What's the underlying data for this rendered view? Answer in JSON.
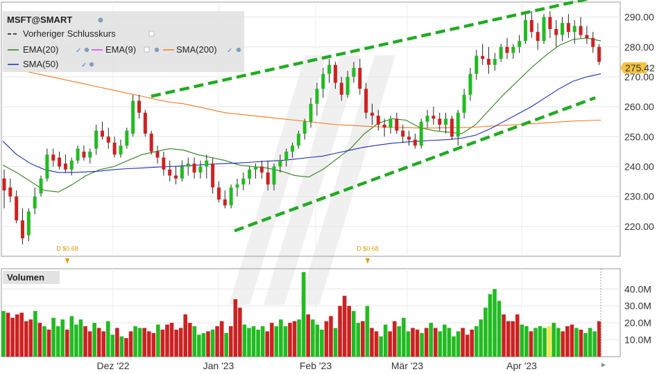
{
  "legend": {
    "symbol": "MSFT@SMART",
    "prev_close_label": "Vorheriger Schlusskurs",
    "ema20_label": "EMA(20)",
    "ema9_label": "EMA(9)",
    "sma200_label": "SMA(200)",
    "sma50_label": "SMA(50)"
  },
  "volume_panel": {
    "title": "Volumen"
  },
  "last_price_label": "275.42",
  "colors": {
    "up": "#22bb22",
    "down": "#cc2222",
    "ema20": "#2e7d1a",
    "ema9": "#e040e0",
    "sma200": "#f07a20",
    "sma50": "#1a2fb0",
    "trendline": "#22aa22",
    "price_tag": "#f5c342",
    "highlight": "#f5e642"
  },
  "chart_data": [
    {
      "type": "candlestick",
      "title": "MSFT@SMART",
      "ylim": [
        210,
        295
      ],
      "y_ticks": [
        "220.00",
        "230.00",
        "240.00",
        "250.00",
        "260.00",
        "270.00",
        "280.00",
        "290.00"
      ],
      "x_ticks": [
        "Dez '22",
        "Jan '23",
        "Feb '23",
        "Mär '23",
        "Apr '23"
      ],
      "dividend_markers": [
        "D $0.68",
        "D $0.68"
      ],
      "last_price": 275.42,
      "series": [
        {
          "name": "EMA(20)",
          "values": [
            240.5,
            238,
            235,
            232,
            231.5,
            234,
            237,
            239,
            240,
            242,
            244,
            245,
            246,
            245.5,
            244,
            243,
            242,
            240.5,
            240,
            239.5,
            238.5,
            237,
            236.5,
            239,
            242.5,
            246,
            251,
            254.5,
            256,
            255.5,
            253,
            252,
            251.5,
            251,
            254,
            259,
            264,
            268.5,
            273,
            277,
            280.5,
            282.5,
            283,
            282
          ]
        },
        {
          "name": "SMA(200)",
          "values": [
            273,
            272.5,
            271.5,
            270.5,
            269.5,
            268.5,
            267.5,
            266.5,
            265.5,
            264.5,
            263.5,
            262.5,
            261.5,
            261,
            260,
            259,
            258,
            257.5,
            257,
            256.5,
            256,
            255.5,
            255,
            254.5,
            254,
            253.8,
            253.5,
            253.3,
            253.1,
            253,
            252.9,
            252.9,
            253,
            253,
            253.2,
            253.5,
            253.8,
            254,
            254.3,
            254.6,
            254.9,
            255.2,
            255.4,
            255.5
          ]
        },
        {
          "name": "SMA(50)",
          "values": [
            248.5,
            244,
            241,
            239,
            238,
            238,
            238.2,
            238.5,
            239,
            239.3,
            239.5,
            239.8,
            240,
            240.2,
            240.5,
            240.8,
            241,
            241.2,
            241.5,
            241.8,
            242,
            242.5,
            243,
            243.5,
            244.5,
            245.5,
            246.5,
            247.2,
            247.8,
            248.2,
            248.5,
            248.8,
            249,
            249.5,
            250.5,
            252.5,
            255,
            257.5,
            260,
            263,
            266,
            268.5,
            270,
            271
          ]
        },
        {
          "name": "Trendline 1",
          "values": [
            263.5,
            296
          ]
        },
        {
          "name": "Trendline 2",
          "values": [
            218.5,
            263
          ]
        }
      ],
      "candles": [
        [
          236,
          239,
          226,
          232
        ],
        [
          233,
          236,
          228,
          230
        ],
        [
          230,
          232,
          221,
          222
        ],
        [
          222,
          226,
          214,
          216
        ],
        [
          217,
          226,
          215,
          225
        ],
        [
          226,
          233,
          224,
          230
        ],
        [
          231,
          237,
          230,
          236
        ],
        [
          236,
          246,
          235,
          244
        ],
        [
          244,
          246,
          240,
          242
        ],
        [
          243,
          245,
          239,
          240
        ],
        [
          241,
          244,
          238,
          239
        ],
        [
          239,
          243,
          237,
          242
        ],
        [
          242,
          247,
          241,
          246
        ],
        [
          245,
          247,
          242,
          243
        ],
        [
          243,
          246,
          241,
          245
        ],
        [
          246,
          254,
          244,
          252
        ],
        [
          252,
          255,
          249,
          250
        ],
        [
          250,
          253,
          246,
          248
        ],
        [
          248,
          250,
          243,
          244
        ],
        [
          244,
          249,
          243,
          247
        ],
        [
          247,
          253,
          246,
          252
        ],
        [
          251,
          264,
          250,
          262
        ],
        [
          262,
          264,
          256,
          258
        ],
        [
          258,
          259,
          250,
          251
        ],
        [
          251,
          252,
          244,
          245
        ],
        [
          245,
          247,
          241,
          243
        ],
        [
          243,
          245,
          237,
          239
        ],
        [
          239,
          242,
          235,
          237
        ],
        [
          237,
          240,
          234,
          236
        ],
        [
          236,
          242,
          235,
          240
        ],
        [
          240,
          243,
          237,
          241
        ],
        [
          241,
          243,
          236,
          238
        ],
        [
          238,
          242,
          236,
          240
        ],
        [
          240,
          244,
          236,
          242
        ],
        [
          241,
          243,
          231,
          233
        ],
        [
          233,
          235,
          228,
          229
        ],
        [
          229,
          232,
          226,
          227
        ],
        [
          227,
          234,
          226,
          233
        ],
        [
          233,
          236,
          230,
          234
        ],
        [
          234,
          238,
          232,
          236
        ],
        [
          236,
          240,
          234,
          239
        ],
        [
          239,
          241,
          236,
          240
        ],
        [
          240,
          242,
          236,
          238
        ],
        [
          238,
          242,
          232,
          234
        ],
        [
          234,
          241,
          232,
          240
        ],
        [
          240,
          244,
          238,
          242
        ],
        [
          242,
          246,
          240,
          245
        ],
        [
          245,
          248,
          243,
          247
        ],
        [
          247,
          252,
          246,
          251
        ],
        [
          251,
          256,
          249,
          255
        ],
        [
          255,
          263,
          253,
          261
        ],
        [
          261,
          268,
          257,
          266
        ],
        [
          266,
          273,
          263,
          271
        ],
        [
          271,
          276,
          268,
          274
        ],
        [
          274,
          275,
          266,
          268
        ],
        [
          268,
          270,
          262,
          264
        ],
        [
          264,
          272,
          263,
          270
        ],
        [
          270,
          275,
          268,
          273
        ],
        [
          273,
          276,
          264,
          266
        ],
        [
          266,
          268,
          256,
          258
        ],
        [
          258,
          261,
          254,
          257
        ],
        [
          257,
          259,
          252,
          254
        ],
        [
          254,
          256,
          250,
          253
        ],
        [
          253,
          257,
          251,
          256
        ],
        [
          256,
          258,
          251,
          252
        ],
        [
          252,
          254,
          248,
          250
        ],
        [
          250,
          252,
          247,
          249
        ],
        [
          249,
          251,
          246,
          247
        ],
        [
          247,
          256,
          246,
          255
        ],
        [
          255,
          259,
          253,
          257
        ],
        [
          257,
          260,
          254,
          256
        ],
        [
          256,
          258,
          252,
          254
        ],
        [
          254,
          258,
          251,
          256
        ],
        [
          256,
          257,
          249,
          250
        ],
        [
          250,
          259,
          247,
          258
        ],
        [
          258,
          266,
          256,
          264
        ],
        [
          264,
          273,
          262,
          271
        ],
        [
          271,
          279,
          269,
          277
        ],
        [
          277,
          281,
          274,
          276
        ],
        [
          276,
          280,
          271,
          274
        ],
        [
          274,
          278,
          272,
          276
        ],
        [
          276,
          281,
          275,
          280
        ],
        [
          280,
          283,
          276,
          278
        ],
        [
          278,
          281,
          276,
          280
        ],
        [
          280,
          284,
          278,
          282
        ],
        [
          282,
          291,
          281,
          289
        ],
        [
          289,
          292,
          283,
          285
        ],
        [
          285,
          288,
          279,
          282
        ],
        [
          282,
          291,
          281,
          290
        ],
        [
          290,
          292,
          283,
          286
        ],
        [
          286,
          289,
          280,
          284
        ],
        [
          284,
          290,
          282,
          288
        ],
        [
          288,
          291,
          283,
          285
        ],
        [
          285,
          289,
          281,
          287
        ],
        [
          287,
          290,
          283,
          284
        ],
        [
          284,
          287,
          281,
          283
        ],
        [
          283,
          285,
          278,
          280
        ],
        [
          280,
          281,
          274,
          275
        ]
      ]
    },
    {
      "type": "bar",
      "title": "Volumen",
      "ylim": [
        0,
        52
      ],
      "y_ticks": [
        "10.0M",
        "20.0M",
        "30.0M",
        "40.0M"
      ],
      "values": [
        [
          27,
          "up"
        ],
        [
          26,
          "down"
        ],
        [
          23,
          "down"
        ],
        [
          25,
          "down"
        ],
        [
          26,
          "down"
        ],
        [
          21,
          "down"
        ],
        [
          22,
          "down"
        ],
        [
          27,
          "up"
        ],
        [
          20,
          "down"
        ],
        [
          18,
          "up"
        ],
        [
          16,
          "down"
        ],
        [
          23,
          "up"
        ],
        [
          18,
          "up"
        ],
        [
          22,
          "up"
        ],
        [
          16,
          "down"
        ],
        [
          24,
          "up"
        ],
        [
          19,
          "up"
        ],
        [
          22,
          "up"
        ],
        [
          18,
          "down"
        ],
        [
          15,
          "down"
        ],
        [
          20,
          "up"
        ],
        [
          17,
          "down"
        ],
        [
          15,
          "down"
        ],
        [
          21,
          "up"
        ],
        [
          13,
          "up"
        ],
        [
          17,
          "down"
        ],
        [
          12,
          "up"
        ],
        [
          11,
          "down"
        ],
        [
          15,
          "down"
        ],
        [
          18,
          "up"
        ],
        [
          17,
          "up"
        ],
        [
          17,
          "down"
        ],
        [
          15,
          "down"
        ],
        [
          14,
          "down"
        ],
        [
          19,
          "up"
        ],
        [
          16,
          "down"
        ],
        [
          19,
          "down"
        ],
        [
          20,
          "down"
        ],
        [
          16,
          "down"
        ],
        [
          17,
          "down"
        ],
        [
          25,
          "down"
        ],
        [
          20,
          "down"
        ],
        [
          18,
          "up"
        ],
        [
          13,
          "up"
        ],
        [
          14,
          "up"
        ],
        [
          15,
          "down"
        ],
        [
          16,
          "up"
        ],
        [
          18,
          "down"
        ],
        [
          21,
          "down"
        ],
        [
          14,
          "up"
        ],
        [
          18,
          "down"
        ],
        [
          34,
          "down"
        ],
        [
          29,
          "down"
        ],
        [
          19,
          "up"
        ],
        [
          17,
          "up"
        ],
        [
          18,
          "up"
        ],
        [
          16,
          "up"
        ],
        [
          18,
          "up"
        ],
        [
          15,
          "down"
        ],
        [
          20,
          "down"
        ],
        [
          18,
          "up"
        ],
        [
          22,
          "up"
        ],
        [
          18,
          "up"
        ],
        [
          20,
          "down"
        ],
        [
          21,
          "down"
        ],
        [
          22,
          "up"
        ],
        [
          50,
          "up"
        ],
        [
          25,
          "down"
        ],
        [
          22,
          "up"
        ],
        [
          19,
          "up"
        ],
        [
          16,
          "up"
        ],
        [
          21,
          "down"
        ],
        [
          24,
          "down"
        ],
        [
          17,
          "up"
        ],
        [
          30,
          "down"
        ],
        [
          36,
          "down"
        ],
        [
          30,
          "down"
        ],
        [
          27,
          "up"
        ],
        [
          20,
          "up"
        ],
        [
          21,
          "down"
        ],
        [
          30,
          "up"
        ],
        [
          17,
          "down"
        ],
        [
          15,
          "down"
        ],
        [
          12,
          "up"
        ],
        [
          19,
          "up"
        ],
        [
          15,
          "down"
        ],
        [
          21,
          "down"
        ],
        [
          18,
          "up"
        ],
        [
          23,
          "up"
        ],
        [
          15,
          "up"
        ],
        [
          17,
          "down"
        ],
        [
          16,
          "down"
        ],
        [
          14,
          "up"
        ],
        [
          17,
          "down"
        ],
        [
          20,
          "up"
        ],
        [
          17,
          "down"
        ],
        [
          15,
          "up"
        ],
        [
          19,
          "up"
        ],
        [
          17,
          "up"
        ],
        [
          12,
          "up"
        ],
        [
          15,
          "up"
        ],
        [
          17,
          "down"
        ],
        [
          13,
          "down"
        ],
        [
          16,
          "down"
        ],
        [
          18,
          "up"
        ],
        [
          22,
          "up"
        ],
        [
          29,
          "up"
        ],
        [
          37,
          "up"
        ],
        [
          40,
          "up"
        ],
        [
          33,
          "up"
        ],
        [
          25,
          "down"
        ],
        [
          21,
          "down"
        ],
        [
          21,
          "down"
        ],
        [
          25,
          "down"
        ],
        [
          19,
          "up"
        ],
        [
          18,
          "up"
        ],
        [
          15,
          "down"
        ],
        [
          17,
          "up"
        ],
        [
          18,
          "up"
        ],
        [
          17,
          "up"
        ],
        [
          18,
          "highlight"
        ],
        [
          20,
          "up"
        ],
        [
          17,
          "up"
        ],
        [
          15,
          "down"
        ],
        [
          18,
          "down"
        ],
        [
          19,
          "down"
        ],
        [
          17,
          "up"
        ],
        [
          16,
          "down"
        ],
        [
          14,
          "up"
        ],
        [
          17,
          "up"
        ],
        [
          15,
          "up"
        ],
        [
          21,
          "down"
        ]
      ]
    }
  ]
}
